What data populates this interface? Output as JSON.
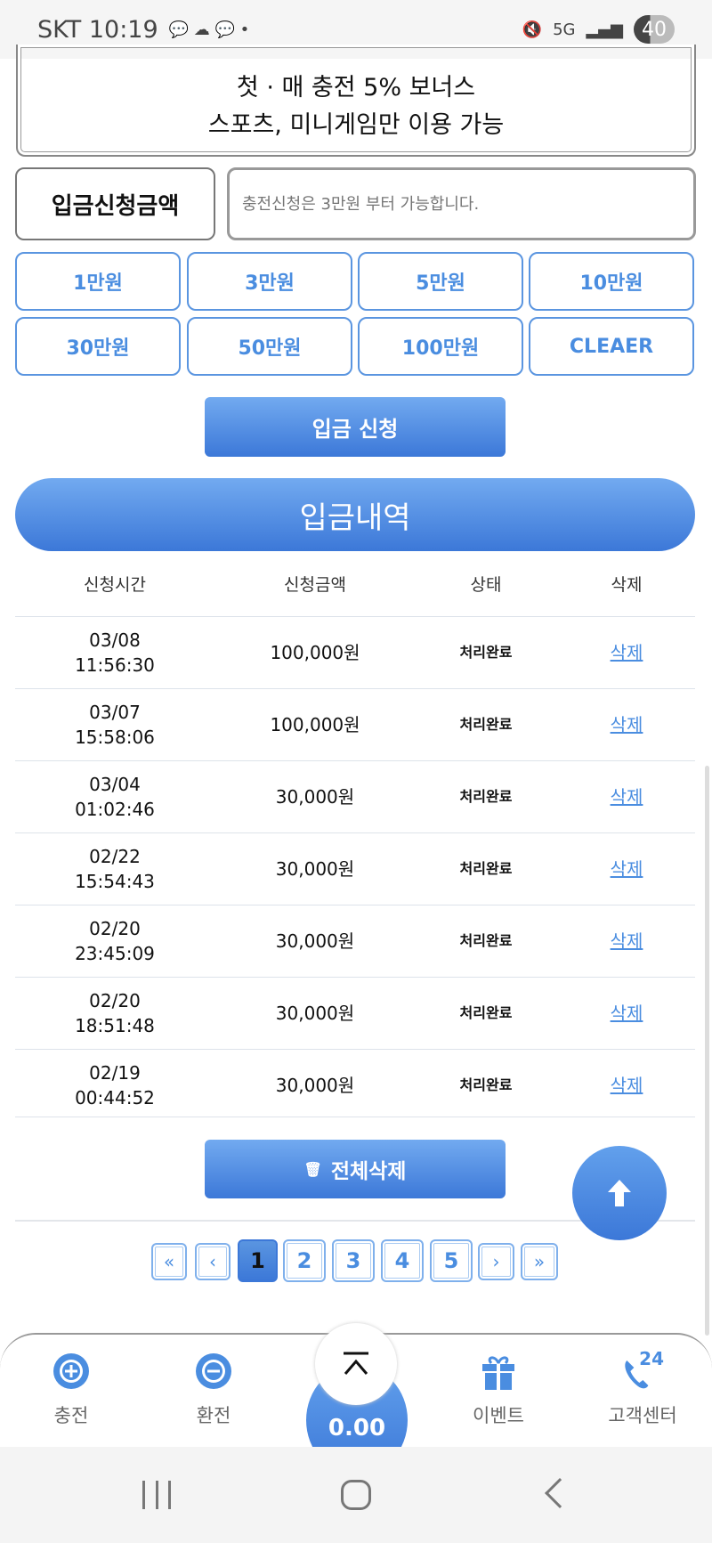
{
  "status": {
    "carrier": "SKT",
    "time": "10:19",
    "battery": "40",
    "network": "5G"
  },
  "banner": {
    "line1": "첫 · 매 충전 5% 보너스",
    "line2": "스포츠, 미니게임만 이용 가능"
  },
  "deposit": {
    "label": "입금신청금액",
    "placeholder": "충전신청은 3만원 부터 가능합니다.",
    "value": "",
    "amounts": [
      "1만원",
      "3만원",
      "5만원",
      "10만원",
      "30만원",
      "50만원",
      "100만원",
      "CLEAER"
    ],
    "submit": "입금 신청"
  },
  "history": {
    "title": "입금내역",
    "headers": [
      "신청시간",
      "신청금액",
      "상태",
      "삭제"
    ],
    "rows": [
      {
        "date": "03/08",
        "time": "11:56:30",
        "amount": "100,000원",
        "status": "처리완료",
        "action": "삭제"
      },
      {
        "date": "03/07",
        "time": "15:58:06",
        "amount": "100,000원",
        "status": "처리완료",
        "action": "삭제"
      },
      {
        "date": "03/04",
        "time": "01:02:46",
        "amount": "30,000원",
        "status": "처리완료",
        "action": "삭제"
      },
      {
        "date": "02/22",
        "time": "15:54:43",
        "amount": "30,000원",
        "status": "처리완료",
        "action": "삭제"
      },
      {
        "date": "02/20",
        "time": "23:45:09",
        "amount": "30,000원",
        "status": "처리완료",
        "action": "삭제"
      },
      {
        "date": "02/20",
        "time": "18:51:48",
        "amount": "30,000원",
        "status": "처리완료",
        "action": "삭제"
      },
      {
        "date": "02/19",
        "time": "00:44:52",
        "amount": "30,000원",
        "status": "처리완료",
        "action": "삭제"
      }
    ],
    "delete_all": "전체삭제"
  },
  "pagination": {
    "first": "«",
    "prev": "‹",
    "pages": [
      "1",
      "2",
      "3",
      "4",
      "5"
    ],
    "current": "1",
    "next": "›",
    "last": "»"
  },
  "bottom_nav": {
    "items": [
      "충전",
      "환전",
      "이벤트",
      "고객센터"
    ],
    "balance": "0.00",
    "support_badge": "24"
  },
  "colors": {
    "accent": "#4a8de0",
    "accent_dark": "#3c78d8"
  }
}
